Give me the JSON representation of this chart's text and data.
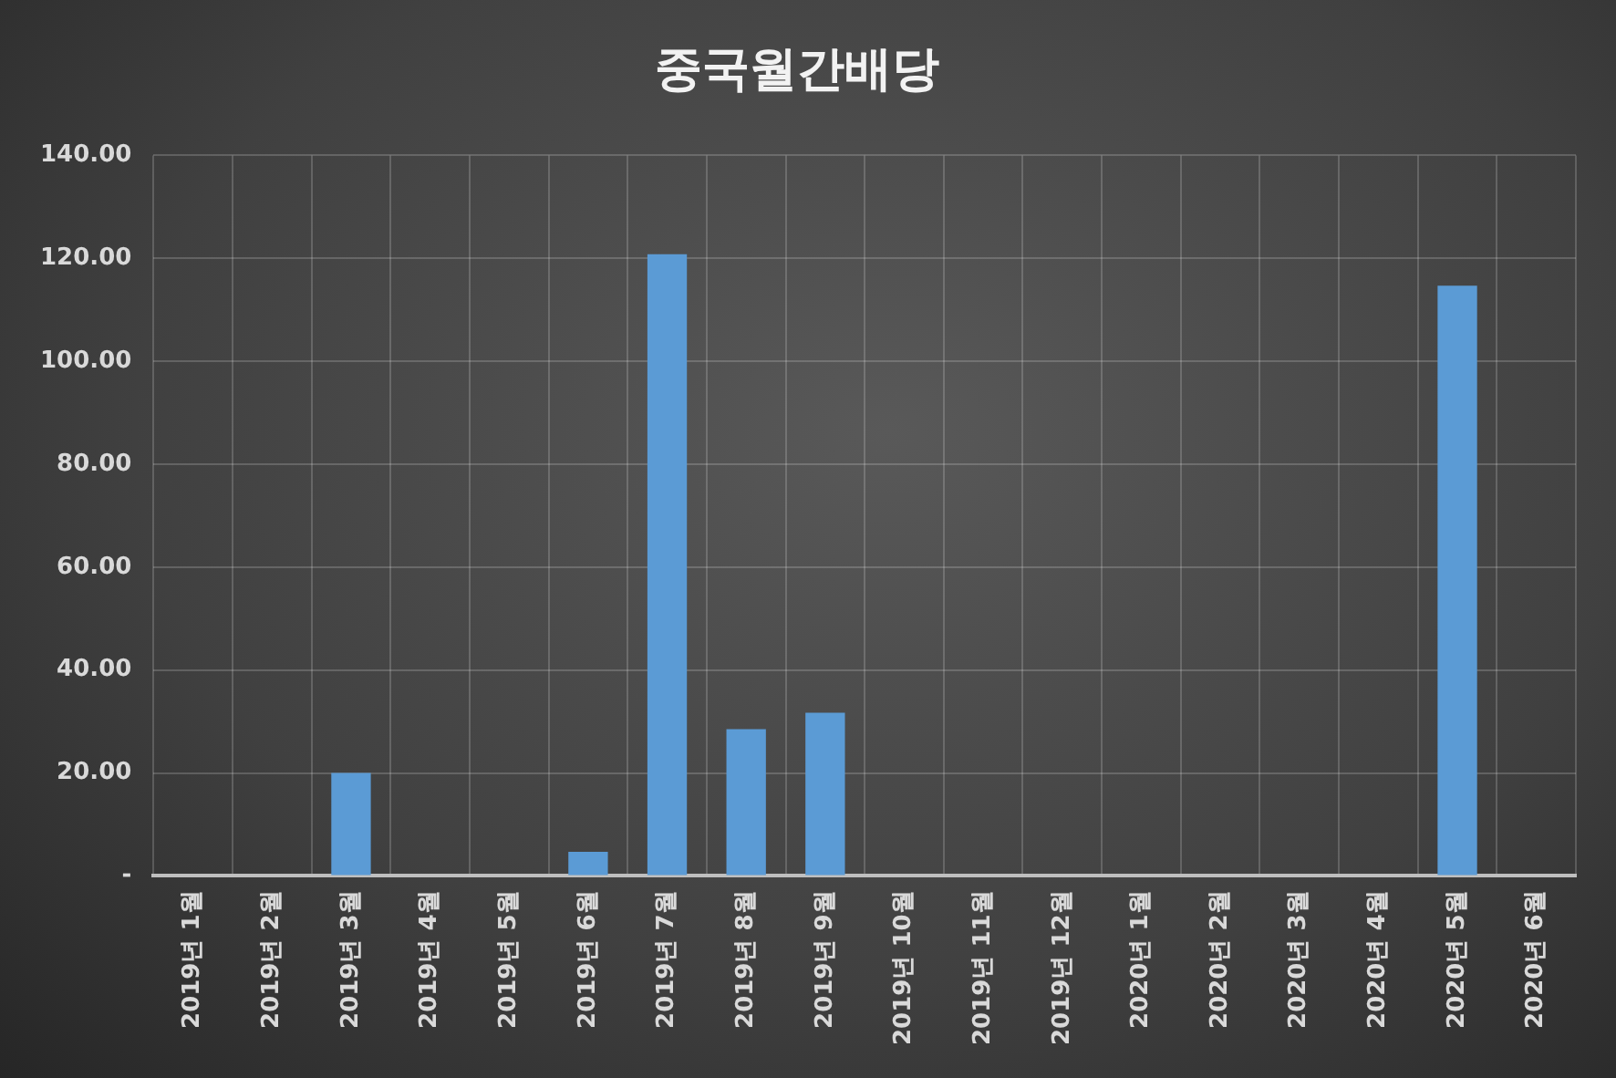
{
  "chart_data": {
    "type": "bar",
    "title": "중국월간배당",
    "categories": [
      "2019년 1월",
      "2019년 2월",
      "2019년 3월",
      "2019년 4월",
      "2019년 5월",
      "2019년 6월",
      "2019년 7월",
      "2019년 8월",
      "2019년 9월",
      "2019년 10월",
      "2019년 11월",
      "2019년 12월",
      "2020년 1월",
      "2020년 2월",
      "2020년 3월",
      "2020년 4월",
      "2020년 5월",
      "2020년 6월"
    ],
    "values": [
      0,
      0,
      20,
      0,
      0,
      4.7,
      120.8,
      28.5,
      31.7,
      0,
      0,
      0,
      0,
      0,
      0,
      0,
      114.7,
      0
    ],
    "color": "#5b9bd5",
    "ylim": [
      0,
      140
    ],
    "yticks": [
      {
        "value": 0,
        "label": "-"
      },
      {
        "value": 20,
        "label": "20.00"
      },
      {
        "value": 40,
        "label": "40.00"
      },
      {
        "value": 60,
        "label": "60.00"
      },
      {
        "value": 80,
        "label": "80.00"
      },
      {
        "value": 100,
        "label": "100.00"
      },
      {
        "value": 120,
        "label": "120.00"
      },
      {
        "value": 140,
        "label": "140.00"
      }
    ],
    "grid": true,
    "legend": false
  }
}
